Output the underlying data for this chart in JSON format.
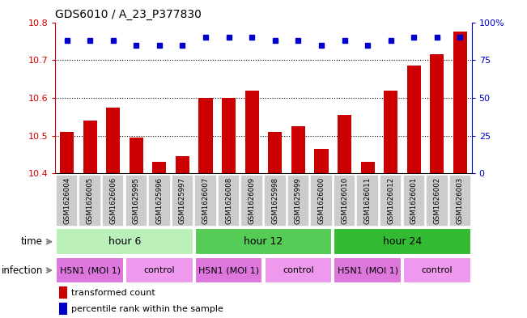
{
  "title": "GDS6010 / A_23_P377830",
  "samples": [
    "GSM1626004",
    "GSM1626005",
    "GSM1626006",
    "GSM1625995",
    "GSM1625996",
    "GSM1625997",
    "GSM1626007",
    "GSM1626008",
    "GSM1626009",
    "GSM1625998",
    "GSM1625999",
    "GSM1626000",
    "GSM1626010",
    "GSM1626011",
    "GSM1626012",
    "GSM1626001",
    "GSM1626002",
    "GSM1626003"
  ],
  "bar_values": [
    10.51,
    10.54,
    10.575,
    10.495,
    10.43,
    10.445,
    10.6,
    10.6,
    10.62,
    10.51,
    10.525,
    10.465,
    10.555,
    10.43,
    10.62,
    10.685,
    10.715,
    10.775
  ],
  "percentile_values": [
    88,
    88,
    88,
    85,
    85,
    85,
    90,
    90,
    90,
    88,
    88,
    85,
    88,
    85,
    88,
    90,
    90,
    90
  ],
  "bar_color": "#cc0000",
  "percentile_color": "#0000cc",
  "ylim_left": [
    10.4,
    10.8
  ],
  "ylim_right": [
    0,
    100
  ],
  "yticks_left": [
    10.4,
    10.5,
    10.6,
    10.7,
    10.8
  ],
  "yticks_right": [
    0,
    25,
    50,
    75,
    100
  ],
  "ytick_labels_right": [
    "0",
    "25",
    "50",
    "75",
    "100%"
  ],
  "grid_values": [
    10.5,
    10.6,
    10.7
  ],
  "time_groups": [
    {
      "label": "hour 6",
      "start": 0,
      "end": 6,
      "color": "#bbf0bb"
    },
    {
      "label": "hour 12",
      "start": 6,
      "end": 12,
      "color": "#55cc55"
    },
    {
      "label": "hour 24",
      "start": 12,
      "end": 18,
      "color": "#33bb33"
    }
  ],
  "infection_groups": [
    {
      "label": "H5N1 (MOI 1)",
      "start": 0,
      "end": 3,
      "h5n1": true
    },
    {
      "label": "control",
      "start": 3,
      "end": 6,
      "h5n1": false
    },
    {
      "label": "H5N1 (MOI 1)",
      "start": 6,
      "end": 9,
      "h5n1": true
    },
    {
      "label": "control",
      "start": 9,
      "end": 12,
      "h5n1": false
    },
    {
      "label": "H5N1 (MOI 1)",
      "start": 12,
      "end": 15,
      "h5n1": true
    },
    {
      "label": "control",
      "start": 15,
      "end": 18,
      "h5n1": false
    }
  ],
  "infection_h5n1_color": "#dd77dd",
  "infection_control_color": "#ee99ee",
  "xtick_bg_color": "#cccccc",
  "legend_bar_label": "transformed count",
  "legend_pct_label": "percentile rank within the sample",
  "time_label": "time",
  "infection_label": "infection",
  "background_color": "#ffffff"
}
